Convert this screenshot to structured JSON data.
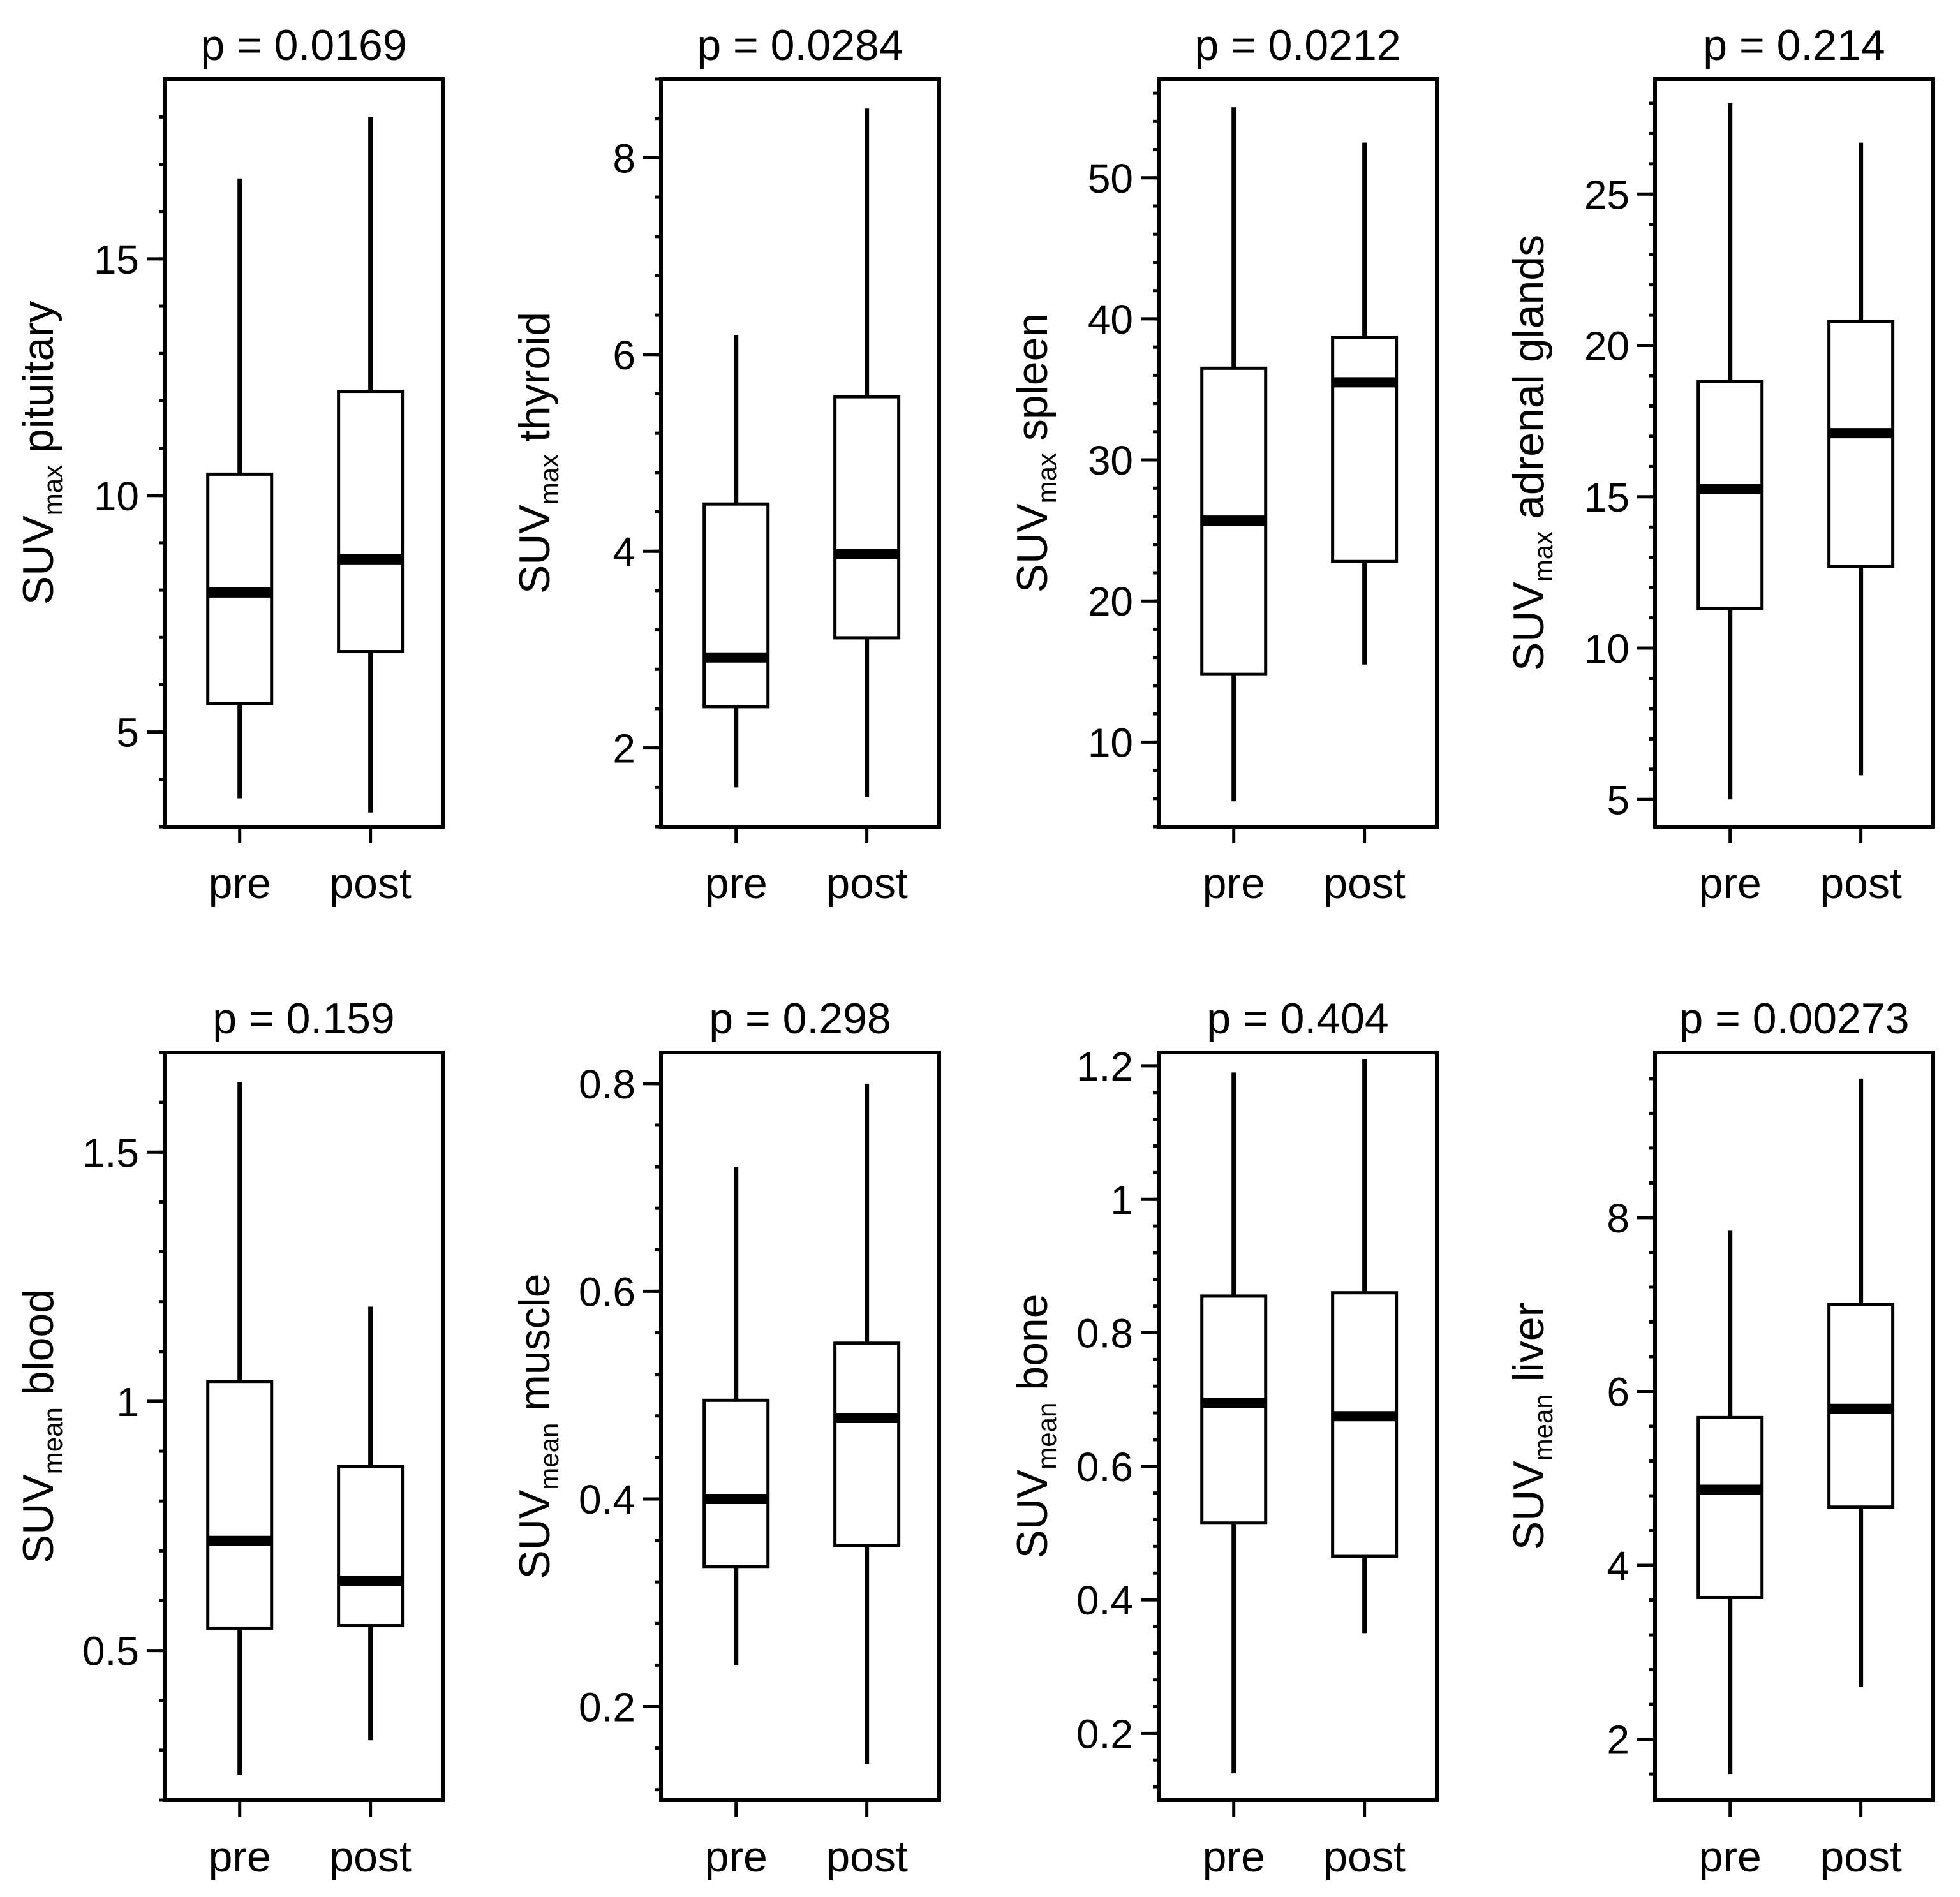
{
  "chart_data": [
    {
      "type": "box",
      "title": "p = 0.0169",
      "ylabel": {
        "main": "SUV",
        "sub": "max",
        "rest": " pituitary"
      },
      "categories": [
        "pre",
        "post"
      ],
      "yticks": [
        "5",
        "10",
        "15"
      ],
      "ylim": [
        3,
        18.8
      ],
      "minor_step": 1,
      "boxes": [
        {
          "name": "pre",
          "min": 3.6,
          "q1": 5.6,
          "median": 7.95,
          "q3": 10.45,
          "max": 16.7
        },
        {
          "name": "post",
          "min": 3.3,
          "q1": 6.7,
          "median": 8.65,
          "q3": 12.2,
          "max": 18.0
        }
      ]
    },
    {
      "type": "box",
      "title": "p = 0.0284",
      "ylabel": {
        "main": "SUV",
        "sub": "max",
        "rest": " thyroid"
      },
      "categories": [
        "pre",
        "post"
      ],
      "yticks": [
        "2",
        "4",
        "6",
        "8"
      ],
      "ylim": [
        1.2,
        8.8
      ],
      "minor_step": 0.4,
      "boxes": [
        {
          "name": "pre",
          "min": 1.6,
          "q1": 2.42,
          "median": 2.92,
          "q3": 4.48,
          "max": 6.2
        },
        {
          "name": "post",
          "min": 1.5,
          "q1": 3.12,
          "median": 3.97,
          "q3": 5.57,
          "max": 8.5
        }
      ]
    },
    {
      "type": "box",
      "title": "p = 0.0212",
      "ylabel": {
        "main": "SUV",
        "sub": "max",
        "rest": " spleen"
      },
      "categories": [
        "pre",
        "post"
      ],
      "yticks": [
        "10",
        "20",
        "30",
        "40",
        "50"
      ],
      "ylim": [
        4,
        57
      ],
      "minor_step": 2,
      "boxes": [
        {
          "name": "pre",
          "min": 5.8,
          "q1": 14.8,
          "median": 25.7,
          "q3": 36.5,
          "max": 55.0
        },
        {
          "name": "post",
          "min": 15.5,
          "q1": 22.8,
          "median": 35.5,
          "q3": 38.7,
          "max": 52.5
        }
      ]
    },
    {
      "type": "box",
      "title": "p = 0.214",
      "ylabel": {
        "main": "SUV",
        "sub": "max",
        "rest": " adrenal glands"
      },
      "categories": [
        "pre",
        "post"
      ],
      "yticks": [
        "5",
        "10",
        "15",
        "20",
        "25"
      ],
      "ylim": [
        4.1,
        28.8
      ],
      "minor_step": 1,
      "boxes": [
        {
          "name": "pre",
          "min": 5.0,
          "q1": 11.3,
          "median": 15.25,
          "q3": 18.8,
          "max": 28.0
        },
        {
          "name": "post",
          "min": 5.8,
          "q1": 12.7,
          "median": 17.1,
          "q3": 20.8,
          "max": 26.7
        }
      ]
    },
    {
      "type": "box",
      "title": "p = 0.159",
      "ylabel": {
        "main": "SUV",
        "sub": "mean",
        "rest": " blood"
      },
      "categories": [
        "pre",
        "post"
      ],
      "yticks": [
        "0.5",
        "1",
        "1.5"
      ],
      "ylim": [
        0.2,
        1.7
      ],
      "minor_step": 0.1,
      "boxes": [
        {
          "name": "pre",
          "min": 0.25,
          "q1": 0.545,
          "median": 0.72,
          "q3": 1.04,
          "max": 1.64
        },
        {
          "name": "post",
          "min": 0.32,
          "q1": 0.55,
          "median": 0.64,
          "q3": 0.87,
          "max": 1.19
        }
      ]
    },
    {
      "type": "box",
      "title": "p = 0.298",
      "ylabel": {
        "main": "SUV",
        "sub": "mean",
        "rest": " muscle"
      },
      "categories": [
        "pre",
        "post"
      ],
      "yticks": [
        "0.2",
        "0.4",
        "0.6",
        "0.8"
      ],
      "ylim": [
        0.11,
        0.83
      ],
      "minor_step": 0.04,
      "boxes": [
        {
          "name": "pre",
          "min": 0.24,
          "q1": 0.335,
          "median": 0.4,
          "q3": 0.495,
          "max": 0.72
        },
        {
          "name": "post",
          "min": 0.145,
          "q1": 0.355,
          "median": 0.478,
          "q3": 0.55,
          "max": 0.8
        }
      ]
    },
    {
      "type": "box",
      "title": "p = 0.404",
      "ylabel": {
        "main": "SUV",
        "sub": "mean",
        "rest": " bone"
      },
      "categories": [
        "pre",
        "post"
      ],
      "yticks": [
        "0.2",
        "0.4",
        "0.6",
        "0.8",
        "1",
        "1.2"
      ],
      "ylim": [
        0.1,
        1.22
      ],
      "minor_step": 0.04,
      "boxes": [
        {
          "name": "pre",
          "min": 0.14,
          "q1": 0.515,
          "median": 0.695,
          "q3": 0.855,
          "max": 1.19
        },
        {
          "name": "post",
          "min": 0.35,
          "q1": 0.465,
          "median": 0.675,
          "q3": 0.86,
          "max": 1.21
        }
      ]
    },
    {
      "type": "box",
      "title": "p = 0.00273",
      "ylabel": {
        "main": "SUV",
        "sub": "mean",
        "rest": " liver"
      },
      "categories": [
        "pre",
        "post"
      ],
      "yticks": [
        "2",
        "4",
        "6",
        "8"
      ],
      "ylim": [
        1.3,
        9.9
      ],
      "minor_step": 0.4,
      "boxes": [
        {
          "name": "pre",
          "min": 1.6,
          "q1": 3.63,
          "median": 4.87,
          "q3": 5.7,
          "max": 7.85
        },
        {
          "name": "post",
          "min": 2.6,
          "q1": 4.67,
          "median": 5.8,
          "q3": 7.0,
          "max": 9.6
        }
      ]
    }
  ]
}
